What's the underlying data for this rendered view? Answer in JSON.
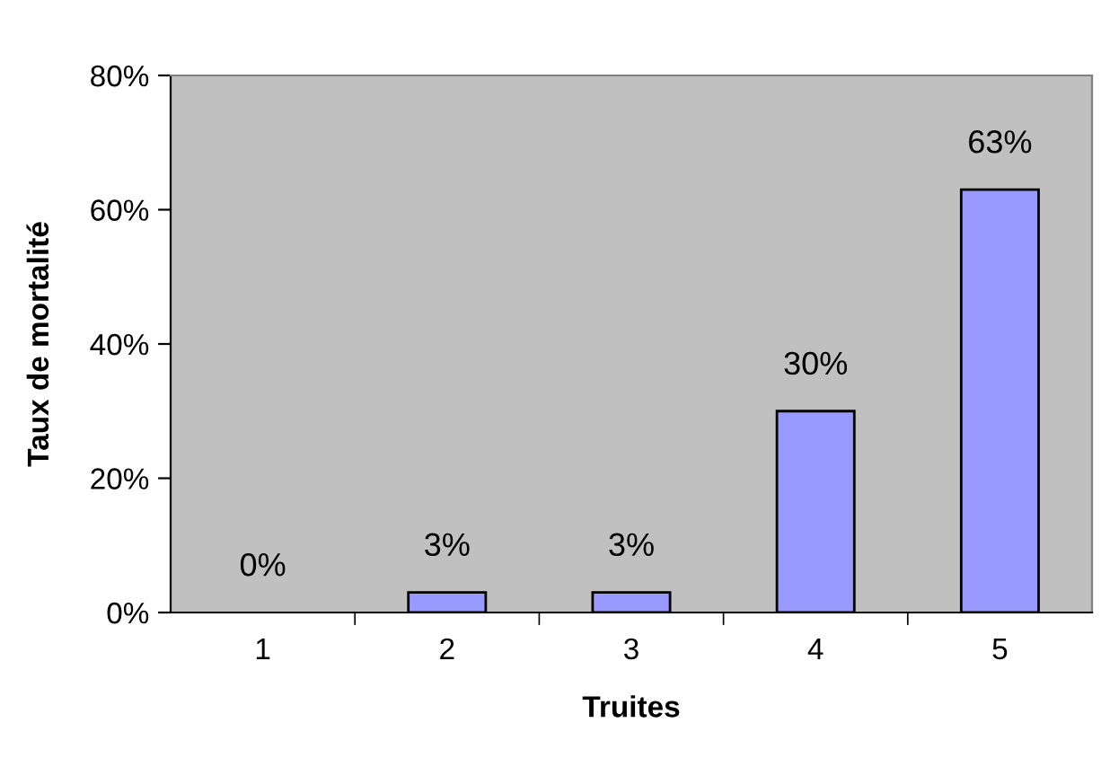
{
  "chart_data": {
    "type": "bar",
    "xlabel": "Truites",
    "ylabel": "Taux de mortalité",
    "categories": [
      "1",
      "2",
      "3",
      "4",
      "5"
    ],
    "values": [
      0,
      3,
      3,
      30,
      63
    ],
    "value_labels": [
      "0%",
      "3%",
      "3%",
      "30%",
      "63%"
    ],
    "color": "#9999ff",
    "ylim": [
      0,
      80
    ],
    "yticks": [
      {
        "value": 0,
        "label": "0%"
      },
      {
        "value": 20,
        "label": "20%"
      },
      {
        "value": 40,
        "label": "40%"
      },
      {
        "value": 60,
        "label": "60%"
      },
      {
        "value": 80,
        "label": "80%"
      }
    ],
    "grid": false,
    "legend": false
  }
}
